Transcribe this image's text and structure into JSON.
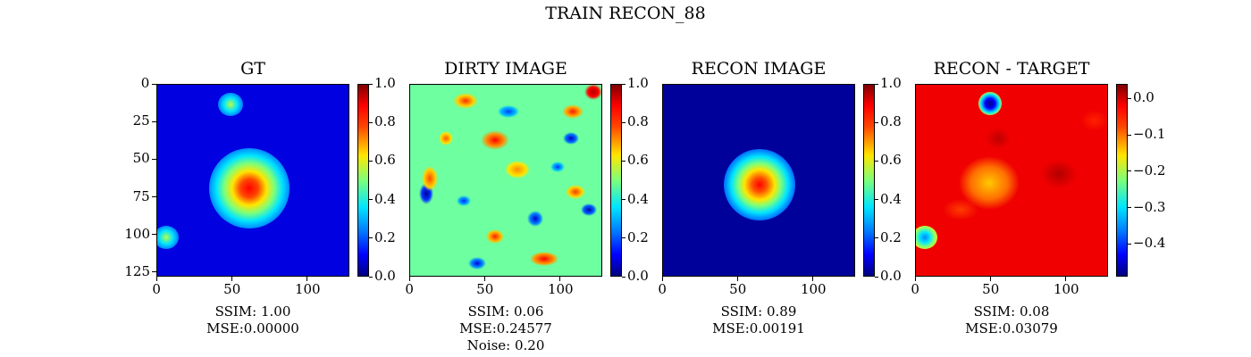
{
  "suptitle": "TRAIN RECON_88",
  "panels": [
    {
      "title": "GT",
      "xticks": [
        "0",
        "50",
        "100"
      ],
      "yticks": [
        "0",
        "25",
        "50",
        "75",
        "100",
        "125"
      ],
      "cbar_ticks": [
        "0.0",
        "0.2",
        "0.4",
        "0.6",
        "0.8",
        "1.0"
      ],
      "caption": [
        "SSIM: 1.00",
        "MSE:0.00000"
      ]
    },
    {
      "title": "DIRTY IMAGE",
      "xticks": [
        "0",
        "50",
        "100"
      ],
      "cbar_ticks": [
        "0.0",
        "0.2",
        "0.4",
        "0.6",
        "0.8",
        "1.0"
      ],
      "caption": [
        "SSIM: 0.06",
        "MSE:0.24577",
        "Noise: 0.20"
      ]
    },
    {
      "title": "RECON IMAGE",
      "xticks": [
        "0",
        "50",
        "100"
      ],
      "cbar_ticks": [
        "0.0",
        "0.2",
        "0.4",
        "0.6",
        "0.8",
        "1.0"
      ],
      "caption": [
        "SSIM: 0.89",
        "MSE:0.00191"
      ]
    },
    {
      "title": "RECON - TARGET",
      "xticks": [
        "0",
        "50",
        "100"
      ],
      "cbar_ticks": [
        "−0.4",
        "−0.3",
        "−0.2",
        "−0.1",
        "0.0"
      ],
      "caption": [
        "SSIM: 0.08",
        "MSE:0.03079"
      ]
    }
  ],
  "chart_data": [
    {
      "type": "heatmap",
      "title": "GT",
      "xlim": [
        0,
        128
      ],
      "ylim": [
        128,
        0
      ],
      "colormap": "jet",
      "clim": [
        0.0,
        1.0
      ],
      "sources": [
        {
          "x": 64,
          "y": 64,
          "intensity": 1.0
        },
        {
          "x": 49,
          "y": 13,
          "intensity": 0.6
        },
        {
          "x": 6,
          "y": 101,
          "intensity": 0.55
        }
      ]
    },
    {
      "type": "heatmap",
      "title": "DIRTY IMAGE",
      "xlim": [
        0,
        128
      ],
      "ylim": [
        128,
        0
      ],
      "colormap": "jet",
      "clim": [
        0.0,
        1.0
      ],
      "description": "noisy speckle field"
    },
    {
      "type": "heatmap",
      "title": "RECON IMAGE",
      "xlim": [
        0,
        128
      ],
      "ylim": [
        128,
        0
      ],
      "colormap": "jet",
      "clim": [
        0.0,
        1.0
      ],
      "sources": [
        {
          "x": 64,
          "y": 65,
          "intensity": 1.0
        }
      ]
    },
    {
      "type": "heatmap",
      "title": "RECON - TARGET",
      "xlim": [
        0,
        128
      ],
      "ylim": [
        128,
        0
      ],
      "colormap": "jet",
      "clim": [
        -0.49,
        0.04
      ],
      "features": [
        {
          "x": 49,
          "y": 13,
          "value": -0.45
        },
        {
          "x": 6,
          "y": 101,
          "value": -0.3
        },
        {
          "x": 62,
          "y": 65,
          "value": -0.12
        }
      ]
    }
  ],
  "colors": {
    "jet_dark_blue": "#00007f",
    "jet_blue": "#0000ff",
    "jet_cyan": "#00e5ff",
    "jet_green": "#7dff7a",
    "jet_yellow": "#ffe600",
    "jet_red": "#ff0000",
    "jet_dark_red": "#7f0000"
  }
}
